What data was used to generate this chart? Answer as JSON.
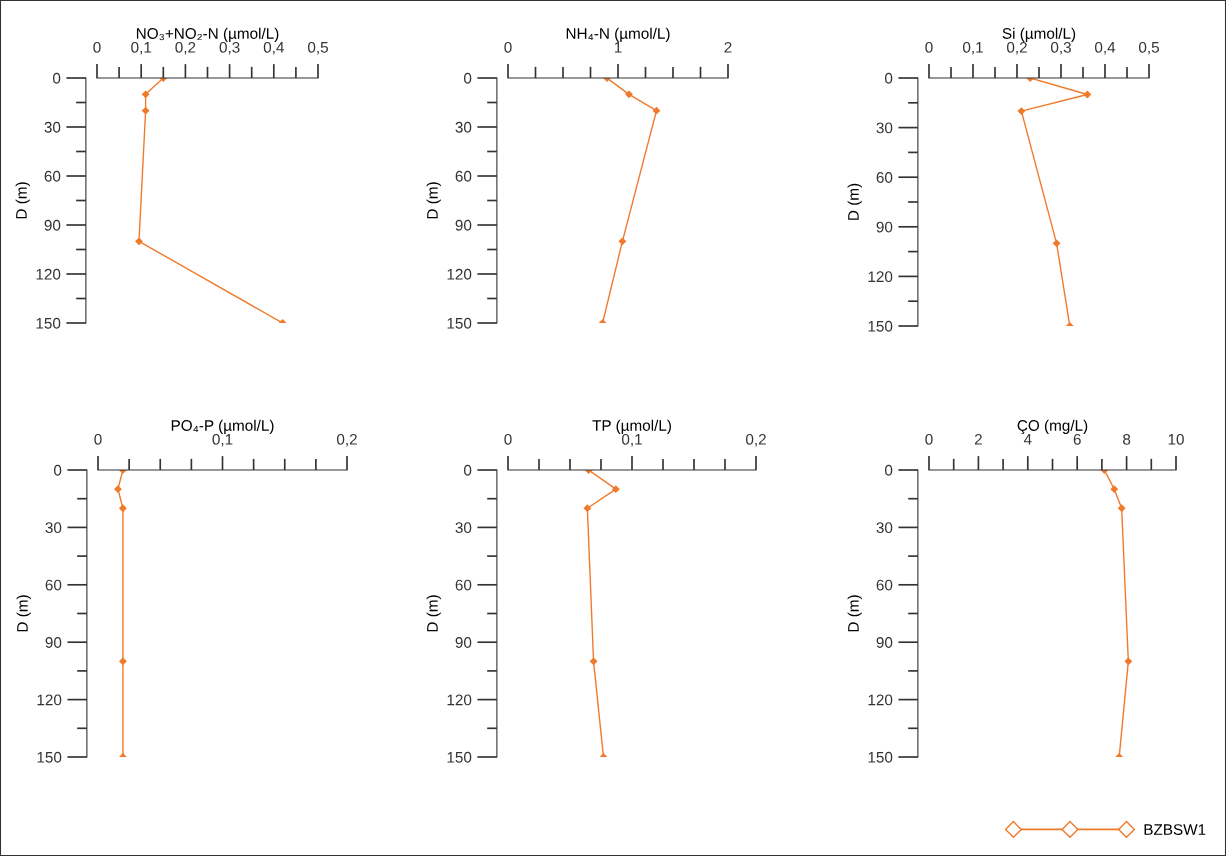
{
  "chart_data": [
    {
      "type": "line",
      "orientation": "horizontal",
      "xlabel": "NO₃+NO₂-N (µmol/L)",
      "ylabel": "D (m)",
      "marker": "diamond",
      "x": [
        0,
        10,
        20,
        100,
        150
      ],
      "series": [
        {
          "color": "#f07a2a",
          "values": [
            0.15,
            0.11,
            0.11,
            0.095,
            0.42
          ]
        }
      ],
      "xlim": [
        0,
        0.5
      ],
      "xticks": [
        0,
        {
          "value": 0.05,
          "label": null
        },
        {
          "value": 0.1,
          "label": "0,1"
        },
        {
          "value": 0.15,
          "label": null
        },
        {
          "value": 0.2,
          "label": "0,2"
        },
        {
          "value": 0.25,
          "label": null
        },
        {
          "value": 0.3,
          "label": "0,3"
        },
        {
          "value": 0.35,
          "label": null
        },
        {
          "value": 0.4,
          "label": "0,4"
        },
        {
          "value": 0.45,
          "label": null
        },
        {
          "value": 0.5,
          "label": "0,5"
        }
      ],
      "ylim": [
        150,
        0
      ],
      "yticks": [
        0,
        {
          "value": 15,
          "label": null
        },
        30,
        {
          "value": 45,
          "label": null
        },
        60,
        {
          "value": 75,
          "label": null
        },
        90,
        {
          "value": 105,
          "label": null
        },
        120,
        {
          "value": 135,
          "label": null
        },
        150
      ]
    },
    {
      "type": "line",
      "orientation": "horizontal",
      "xlabel": "NH₄-N (µmol/L)",
      "ylabel": "D (m)",
      "marker": "diamond",
      "x": [
        0,
        10,
        20,
        100,
        150
      ],
      "series": [
        {
          "color": "#f07a2a",
          "values": [
            0.9,
            1.1,
            1.35,
            1.04,
            0.86
          ]
        }
      ],
      "xlim": [
        0,
        2
      ],
      "xticks": [
        0,
        {
          "value": 0.25,
          "label": null
        },
        {
          "value": 0.5,
          "label": null
        },
        {
          "value": 0.75,
          "label": null
        },
        1,
        {
          "value": 1.25,
          "label": null
        },
        {
          "value": 1.5,
          "label": null
        },
        {
          "value": 1.75,
          "label": null
        },
        2
      ],
      "ylim": [
        150,
        0
      ],
      "yticks": [
        0,
        {
          "value": 15,
          "label": null
        },
        30,
        {
          "value": 45,
          "label": null
        },
        60,
        {
          "value": 75,
          "label": null
        },
        90,
        {
          "value": 105,
          "label": null
        },
        120,
        {
          "value": 135,
          "label": null
        },
        150
      ]
    },
    {
      "type": "line",
      "orientation": "horizontal",
      "xlabel": "Si (µmol/L)",
      "ylabel": "D (m)",
      "marker": "diamond",
      "x": [
        0,
        10,
        20,
        100,
        150
      ],
      "series": [
        {
          "color": "#f07a2a",
          "values": [
            0.23,
            0.36,
            0.21,
            0.29,
            0.32
          ]
        }
      ],
      "xlim": [
        0,
        0.5
      ],
      "xticks": [
        0,
        {
          "value": 0.05,
          "label": null
        },
        {
          "value": 0.1,
          "label": "0,1"
        },
        {
          "value": 0.15,
          "label": null
        },
        {
          "value": 0.2,
          "label": "0,2"
        },
        {
          "value": 0.25,
          "label": null
        },
        {
          "value": 0.3,
          "label": "0,3"
        },
        {
          "value": 0.35,
          "label": null
        },
        {
          "value": 0.4,
          "label": "0,4"
        },
        {
          "value": 0.45,
          "label": null
        },
        {
          "value": 0.5,
          "label": "0,5"
        }
      ],
      "ylim": [
        150,
        0
      ],
      "yticks": [
        0,
        {
          "value": 15,
          "label": null
        },
        30,
        {
          "value": 45,
          "label": null
        },
        60,
        {
          "value": 75,
          "label": null
        },
        90,
        {
          "value": 105,
          "label": null
        },
        120,
        {
          "value": 135,
          "label": null
        },
        150
      ]
    },
    {
      "type": "line",
      "orientation": "horizontal",
      "xlabel": "PO₄-P (µmol/L)",
      "ylabel": "D (m)",
      "marker": "diamond",
      "x": [
        0,
        10,
        20,
        100,
        150
      ],
      "series": [
        {
          "color": "#f07a2a",
          "values": [
            0.02,
            0.016,
            0.02,
            0.02,
            0.02
          ]
        }
      ],
      "xlim": [
        0,
        0.2
      ],
      "xticks": [
        0,
        {
          "value": 0.025,
          "label": null
        },
        {
          "value": 0.05,
          "label": null
        },
        {
          "value": 0.075,
          "label": null
        },
        {
          "value": 0.1,
          "label": "0,1"
        },
        {
          "value": 0.125,
          "label": null
        },
        {
          "value": 0.15,
          "label": null
        },
        {
          "value": 0.175,
          "label": null
        },
        {
          "value": 0.2,
          "label": "0,2"
        }
      ],
      "ylim": [
        150,
        0
      ],
      "yticks": [
        0,
        {
          "value": 15,
          "label": null
        },
        30,
        {
          "value": 45,
          "label": null
        },
        60,
        {
          "value": 75,
          "label": null
        },
        90,
        {
          "value": 105,
          "label": null
        },
        120,
        {
          "value": 135,
          "label": null
        },
        150
      ]
    },
    {
      "type": "line",
      "orientation": "horizontal",
      "xlabel": "TP (µmol/L)",
      "ylabel": "D (m)",
      "marker": "diamond",
      "x": [
        0,
        10,
        20,
        100,
        150
      ],
      "series": [
        {
          "color": "#f07a2a",
          "values": [
            0.065,
            0.087,
            0.064,
            0.069,
            0.077
          ]
        }
      ],
      "xlim": [
        0,
        0.2
      ],
      "xticks": [
        0,
        {
          "value": 0.025,
          "label": null
        },
        {
          "value": 0.05,
          "label": null
        },
        {
          "value": 0.075,
          "label": null
        },
        {
          "value": 0.1,
          "label": "0,1"
        },
        {
          "value": 0.125,
          "label": null
        },
        {
          "value": 0.15,
          "label": null
        },
        {
          "value": 0.175,
          "label": null
        },
        {
          "value": 0.2,
          "label": "0,2"
        }
      ],
      "ylim": [
        150,
        0
      ],
      "yticks": [
        0,
        {
          "value": 15,
          "label": null
        },
        30,
        {
          "value": 45,
          "label": null
        },
        60,
        {
          "value": 75,
          "label": null
        },
        90,
        {
          "value": 105,
          "label": null
        },
        120,
        {
          "value": 135,
          "label": null
        },
        150
      ]
    },
    {
      "type": "line",
      "orientation": "horizontal",
      "xlabel": "ÇO (mg/L)",
      "ylabel": "D (m)",
      "marker": "diamond",
      "legend": "bottom right",
      "x": [
        0,
        10,
        20,
        100,
        150
      ],
      "series": [
        {
          "name": "BZBSW1",
          "color": "#f07a2a",
          "values": [
            7.1,
            7.5,
            7.8,
            8.07,
            7.7
          ]
        }
      ],
      "xlim": [
        0,
        10
      ],
      "xticks": [
        0,
        {
          "value": 1,
          "label": null
        },
        2,
        {
          "value": 3,
          "label": null
        },
        4,
        {
          "value": 5,
          "label": null
        },
        6,
        {
          "value": 7,
          "label": null
        },
        8,
        {
          "value": 9,
          "label": null
        },
        10
      ],
      "ylim": [
        150,
        0
      ],
      "yticks": [
        0,
        {
          "value": 15,
          "label": null
        },
        30,
        {
          "value": 45,
          "label": null
        },
        60,
        {
          "value": 75,
          "label": null
        },
        90,
        {
          "value": 105,
          "label": null
        },
        120,
        {
          "value": 135,
          "label": null
        },
        150
      ]
    }
  ]
}
